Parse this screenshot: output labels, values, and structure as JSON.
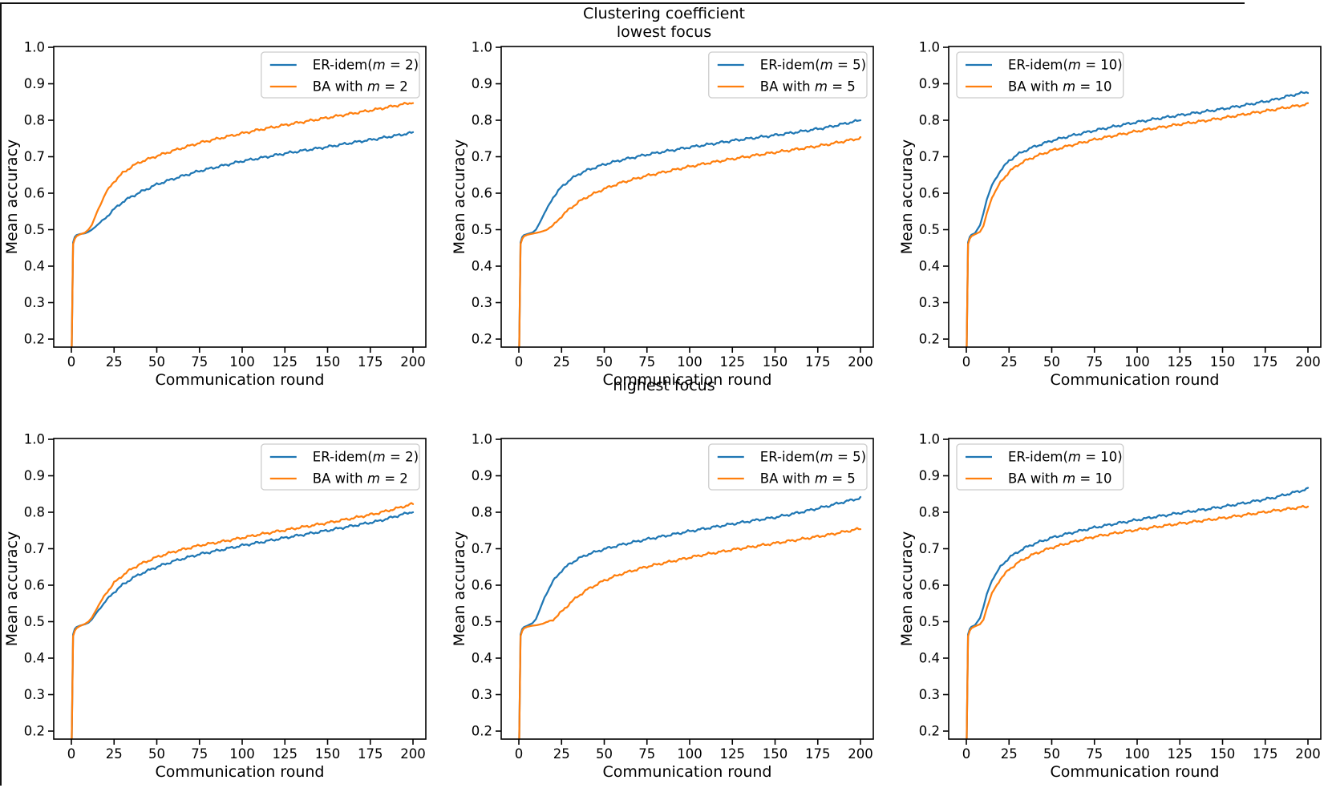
{
  "figure": {
    "suptitle": "Clustering coefficient",
    "row_titles": [
      "lowest focus",
      "highest focus"
    ],
    "xlabel": "Communication round",
    "ylabel": "Mean accuracy",
    "accent_colors": {
      "er_line": "#1f77b4",
      "ba_line": "#ff7f0e"
    },
    "x_ticks": [
      0,
      25,
      50,
      75,
      100,
      125,
      150,
      175,
      200
    ],
    "y_ticks": [
      0.2,
      0.3,
      0.4,
      0.5,
      0.6,
      0.7,
      0.8,
      0.9,
      1.0
    ]
  },
  "chart_data": [
    {
      "type": "line",
      "row_title": "lowest focus",
      "grid": false,
      "xlabel": "Communication round",
      "ylabel": "Mean accuracy",
      "xlim": [
        -10,
        210
      ],
      "ylim": [
        0.178,
        1.002
      ],
      "x_ticks": [
        0,
        25,
        50,
        75,
        100,
        125,
        150,
        175,
        200
      ],
      "y_ticks": [
        0.2,
        0.3,
        0.4,
        0.5,
        0.6,
        0.7,
        0.8,
        0.9,
        1.0
      ],
      "legend_position": "upper right",
      "x": [
        0,
        1,
        2,
        3,
        5,
        8,
        10,
        12,
        15,
        20,
        25,
        30,
        35,
        40,
        50,
        60,
        75,
        90,
        100,
        110,
        125,
        140,
        150,
        165,
        180,
        190,
        200
      ],
      "series": [
        {
          "name": "ER-idem(m = 2)",
          "color": "#1f77b4",
          "y": [
            0.1,
            0.465,
            0.48,
            0.485,
            0.488,
            0.49,
            0.494,
            0.5,
            0.512,
            0.532,
            0.556,
            0.576,
            0.59,
            0.602,
            0.624,
            0.64,
            0.661,
            0.677,
            0.688,
            0.696,
            0.709,
            0.72,
            0.727,
            0.739,
            0.75,
            0.758,
            0.766
          ]
        },
        {
          "name": "BA with m = 2",
          "color": "#ff7f0e",
          "y": [
            0.1,
            0.46,
            0.475,
            0.482,
            0.487,
            0.492,
            0.5,
            0.513,
            0.548,
            0.6,
            0.632,
            0.655,
            0.672,
            0.685,
            0.702,
            0.717,
            0.738,
            0.754,
            0.764,
            0.774,
            0.787,
            0.799,
            0.807,
            0.819,
            0.831,
            0.84,
            0.849
          ]
        }
      ]
    },
    {
      "type": "line",
      "row_title": "lowest focus",
      "grid": false,
      "xlabel": "Communication round",
      "ylabel": "Mean accuracy",
      "xlim": [
        -10,
        210
      ],
      "ylim": [
        0.178,
        1.002
      ],
      "x_ticks": [
        0,
        25,
        50,
        75,
        100,
        125,
        150,
        175,
        200
      ],
      "y_ticks": [
        0.2,
        0.3,
        0.4,
        0.5,
        0.6,
        0.7,
        0.8,
        0.9,
        1.0
      ],
      "legend_position": "upper right",
      "x": [
        0,
        1,
        2,
        3,
        5,
        8,
        10,
        12,
        15,
        20,
        25,
        30,
        35,
        40,
        50,
        60,
        75,
        90,
        100,
        110,
        125,
        140,
        150,
        165,
        180,
        190,
        200
      ],
      "series": [
        {
          "name": "ER-idem(m = 5)",
          "color": "#1f77b4",
          "y": [
            0.1,
            0.465,
            0.48,
            0.485,
            0.488,
            0.492,
            0.5,
            0.517,
            0.545,
            0.588,
            0.617,
            0.637,
            0.652,
            0.663,
            0.679,
            0.691,
            0.706,
            0.718,
            0.726,
            0.733,
            0.744,
            0.753,
            0.759,
            0.769,
            0.78,
            0.79,
            0.8
          ]
        },
        {
          "name": "BA with m = 5",
          "color": "#ff7f0e",
          "y": [
            0.1,
            0.46,
            0.475,
            0.482,
            0.486,
            0.489,
            0.491,
            0.493,
            0.497,
            0.511,
            0.537,
            0.558,
            0.576,
            0.59,
            0.612,
            0.629,
            0.648,
            0.663,
            0.673,
            0.682,
            0.694,
            0.705,
            0.712,
            0.722,
            0.733,
            0.742,
            0.751
          ]
        }
      ]
    },
    {
      "type": "line",
      "row_title": "lowest focus",
      "grid": false,
      "xlabel": "Communication round",
      "ylabel": "Mean accuracy",
      "xlim": [
        -10,
        210
      ],
      "ylim": [
        0.178,
        1.002
      ],
      "x_ticks": [
        0,
        25,
        50,
        75,
        100,
        125,
        150,
        175,
        200
      ],
      "y_ticks": [
        0.2,
        0.3,
        0.4,
        0.5,
        0.6,
        0.7,
        0.8,
        0.9,
        1.0
      ],
      "legend_position": "upper left",
      "x": [
        0,
        1,
        2,
        3,
        5,
        8,
        10,
        12,
        15,
        20,
        25,
        30,
        35,
        40,
        50,
        60,
        75,
        90,
        100,
        110,
        125,
        140,
        150,
        165,
        180,
        190,
        200
      ],
      "series": [
        {
          "name": "ER-idem(m = 10)",
          "color": "#1f77b4",
          "y": [
            0.1,
            0.465,
            0.48,
            0.486,
            0.49,
            0.512,
            0.545,
            0.583,
            0.622,
            0.662,
            0.689,
            0.706,
            0.718,
            0.728,
            0.744,
            0.756,
            0.772,
            0.786,
            0.795,
            0.803,
            0.814,
            0.824,
            0.831,
            0.843,
            0.856,
            0.868,
            0.878
          ]
        },
        {
          "name": "BA with m = 10",
          "color": "#ff7f0e",
          "y": [
            0.1,
            0.46,
            0.475,
            0.482,
            0.487,
            0.494,
            0.51,
            0.545,
            0.588,
            0.63,
            0.658,
            0.677,
            0.69,
            0.7,
            0.717,
            0.73,
            0.747,
            0.761,
            0.77,
            0.778,
            0.789,
            0.799,
            0.806,
            0.818,
            0.829,
            0.837,
            0.844
          ]
        }
      ]
    },
    {
      "type": "line",
      "row_title": "highest focus",
      "grid": false,
      "xlabel": "Communication round",
      "ylabel": "Mean accuracy",
      "xlim": [
        -10,
        210
      ],
      "ylim": [
        0.178,
        1.002
      ],
      "x_ticks": [
        0,
        25,
        50,
        75,
        100,
        125,
        150,
        175,
        200
      ],
      "y_ticks": [
        0.2,
        0.3,
        0.4,
        0.5,
        0.6,
        0.7,
        0.8,
        0.9,
        1.0
      ],
      "legend_position": "upper right",
      "x": [
        0,
        1,
        2,
        3,
        5,
        8,
        10,
        12,
        15,
        20,
        25,
        30,
        35,
        40,
        50,
        60,
        75,
        90,
        100,
        110,
        125,
        140,
        150,
        165,
        180,
        190,
        200
      ],
      "series": [
        {
          "name": "ER-idem(m = 2)",
          "color": "#1f77b4",
          "y": [
            0.1,
            0.465,
            0.48,
            0.485,
            0.489,
            0.493,
            0.497,
            0.506,
            0.526,
            0.556,
            0.581,
            0.601,
            0.617,
            0.63,
            0.65,
            0.666,
            0.685,
            0.699,
            0.709,
            0.717,
            0.73,
            0.742,
            0.75,
            0.763,
            0.776,
            0.789,
            0.802
          ]
        },
        {
          "name": "BA with m = 2",
          "color": "#ff7f0e",
          "y": [
            0.1,
            0.46,
            0.475,
            0.482,
            0.488,
            0.494,
            0.5,
            0.511,
            0.537,
            0.576,
            0.606,
            0.627,
            0.644,
            0.657,
            0.677,
            0.692,
            0.709,
            0.721,
            0.73,
            0.739,
            0.751,
            0.763,
            0.771,
            0.784,
            0.798,
            0.81,
            0.823
          ]
        }
      ]
    },
    {
      "type": "line",
      "row_title": "highest focus",
      "grid": false,
      "xlabel": "Communication round",
      "ylabel": "Mean accuracy",
      "xlim": [
        -10,
        210
      ],
      "ylim": [
        0.178,
        1.002
      ],
      "x_ticks": [
        0,
        25,
        50,
        75,
        100,
        125,
        150,
        175,
        200
      ],
      "y_ticks": [
        0.2,
        0.3,
        0.4,
        0.5,
        0.6,
        0.7,
        0.8,
        0.9,
        1.0
      ],
      "legend_position": "upper right",
      "x": [
        0,
        1,
        2,
        3,
        5,
        8,
        10,
        12,
        15,
        20,
        25,
        30,
        35,
        40,
        50,
        60,
        75,
        90,
        100,
        110,
        125,
        140,
        150,
        165,
        180,
        190,
        200
      ],
      "series": [
        {
          "name": "ER-idem(m = 5)",
          "color": "#1f77b4",
          "y": [
            0.1,
            0.465,
            0.48,
            0.485,
            0.489,
            0.496,
            0.507,
            0.53,
            0.566,
            0.611,
            0.64,
            0.659,
            0.673,
            0.684,
            0.699,
            0.711,
            0.726,
            0.739,
            0.748,
            0.756,
            0.768,
            0.779,
            0.786,
            0.8,
            0.816,
            0.828,
            0.839
          ]
        },
        {
          "name": "BA with m = 5",
          "color": "#ff7f0e",
          "y": [
            0.1,
            0.46,
            0.475,
            0.482,
            0.486,
            0.489,
            0.49,
            0.492,
            0.496,
            0.505,
            0.527,
            0.551,
            0.571,
            0.588,
            0.613,
            0.631,
            0.651,
            0.666,
            0.676,
            0.685,
            0.697,
            0.708,
            0.715,
            0.726,
            0.737,
            0.746,
            0.755
          ]
        }
      ]
    },
    {
      "type": "line",
      "row_title": "highest focus",
      "grid": false,
      "xlabel": "Communication round",
      "ylabel": "Mean accuracy",
      "xlim": [
        -10,
        210
      ],
      "ylim": [
        0.178,
        1.002
      ],
      "x_ticks": [
        0,
        25,
        50,
        75,
        100,
        125,
        150,
        175,
        200
      ],
      "y_ticks": [
        0.2,
        0.3,
        0.4,
        0.5,
        0.6,
        0.7,
        0.8,
        0.9,
        1.0
      ],
      "legend_position": "upper left",
      "x": [
        0,
        1,
        2,
        3,
        5,
        8,
        10,
        12,
        15,
        20,
        25,
        30,
        35,
        40,
        50,
        60,
        75,
        90,
        100,
        110,
        125,
        140,
        150,
        165,
        180,
        190,
        200
      ],
      "series": [
        {
          "name": "ER-idem(m = 10)",
          "color": "#1f77b4",
          "y": [
            0.1,
            0.465,
            0.48,
            0.486,
            0.49,
            0.51,
            0.54,
            0.576,
            0.613,
            0.651,
            0.675,
            0.691,
            0.704,
            0.714,
            0.73,
            0.742,
            0.758,
            0.771,
            0.779,
            0.787,
            0.798,
            0.808,
            0.815,
            0.827,
            0.84,
            0.852,
            0.864
          ]
        },
        {
          "name": "BA with m = 10",
          "color": "#ff7f0e",
          "y": [
            0.1,
            0.46,
            0.475,
            0.482,
            0.487,
            0.493,
            0.505,
            0.537,
            0.578,
            0.617,
            0.643,
            0.661,
            0.675,
            0.686,
            0.703,
            0.716,
            0.733,
            0.745,
            0.752,
            0.759,
            0.769,
            0.778,
            0.784,
            0.794,
            0.804,
            0.81,
            0.816
          ]
        }
      ]
    }
  ]
}
